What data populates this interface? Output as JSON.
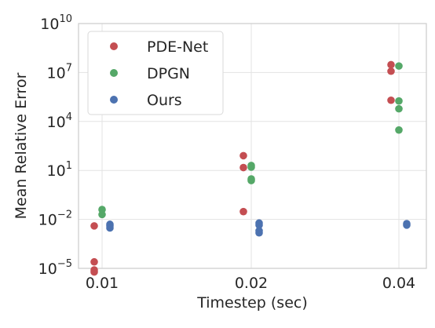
{
  "chart_data": {
    "type": "scatter",
    "title": "",
    "xlabel": "Timestep (sec)",
    "ylabel": "Mean Relative Error",
    "x_categories": [
      "0.01",
      "0.02",
      "0.04"
    ],
    "y_scale": "log",
    "ylim": [
      1e-05,
      10000000000.0
    ],
    "y_tick_exponents": [
      -5,
      -2,
      1,
      4,
      7,
      10
    ],
    "grid": true,
    "legend_position": "top-left",
    "series": [
      {
        "name": "PDE-Net",
        "color": "#c44e52",
        "points": [
          {
            "x": "0.01",
            "y": 0.004
          },
          {
            "x": "0.01",
            "y": 2.5e-05
          },
          {
            "x": "0.01",
            "y": 8e-06
          },
          {
            "x": "0.01",
            "y": 6e-06
          },
          {
            "x": "0.02",
            "y": 80
          },
          {
            "x": "0.02",
            "y": 15
          },
          {
            "x": "0.02",
            "y": 0.03
          },
          {
            "x": "0.04",
            "y": 30000000
          },
          {
            "x": "0.04",
            "y": 12000000
          },
          {
            "x": "0.04",
            "y": 200000
          }
        ]
      },
      {
        "name": "DPGN",
        "color": "#55a868",
        "points": [
          {
            "x": "0.01",
            "y": 0.04
          },
          {
            "x": "0.01",
            "y": 0.02
          },
          {
            "x": "0.02",
            "y": 20
          },
          {
            "x": "0.02",
            "y": 16
          },
          {
            "x": "0.02",
            "y": 3
          },
          {
            "x": "0.02",
            "y": 2.4
          },
          {
            "x": "0.04",
            "y": 25000000
          },
          {
            "x": "0.04",
            "y": 180000
          },
          {
            "x": "0.04",
            "y": 60000
          },
          {
            "x": "0.04",
            "y": 3000
          }
        ]
      },
      {
        "name": "Ours",
        "color": "#4c72b0",
        "points": [
          {
            "x": "0.01",
            "y": 0.005
          },
          {
            "x": "0.01",
            "y": 0.004
          },
          {
            "x": "0.01",
            "y": 0.003
          },
          {
            "x": "0.02",
            "y": 0.006
          },
          {
            "x": "0.02",
            "y": 0.0045
          },
          {
            "x": "0.02",
            "y": 0.002
          },
          {
            "x": "0.02",
            "y": 0.0015
          },
          {
            "x": "0.04",
            "y": 0.0055
          },
          {
            "x": "0.04",
            "y": 0.0045
          }
        ]
      }
    ]
  }
}
